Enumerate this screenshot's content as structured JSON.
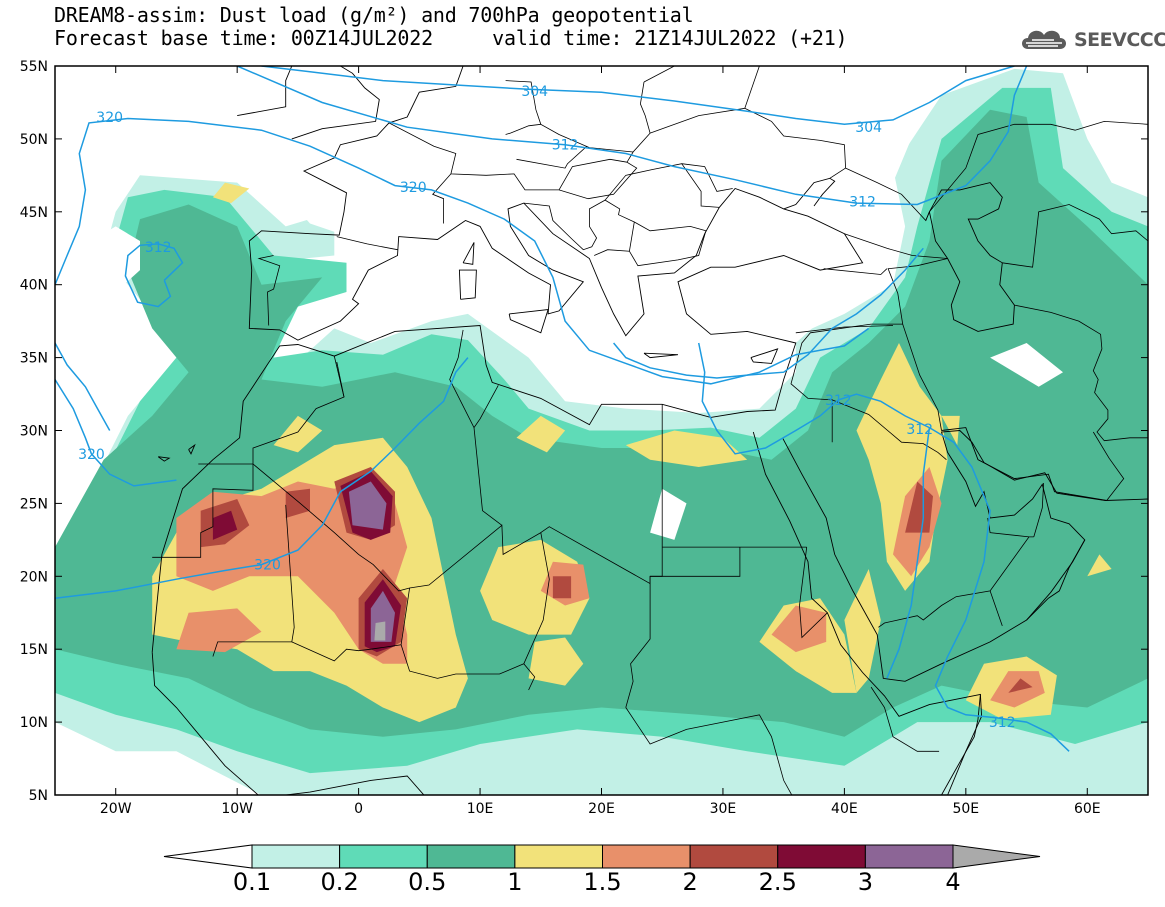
{
  "title": {
    "line1": "DREAM8-assim: Dust load (g/m²) and 700hPa geopotential",
    "line2_left": "Forecast base time: 00Z14JUL2022",
    "line2_right": "valid time: 21Z14JUL2022 (+21)"
  },
  "brand": {
    "name": "SEEVCCC",
    "icon": "cloud-logo-icon"
  },
  "axes": {
    "lon_range": [
      -25,
      65
    ],
    "lat_range": [
      5,
      55
    ],
    "lat_ticks": [
      {
        "value": 55,
        "label": "55N"
      },
      {
        "value": 50,
        "label": "50N"
      },
      {
        "value": 45,
        "label": "45N"
      },
      {
        "value": 40,
        "label": "40N"
      },
      {
        "value": 35,
        "label": "35N"
      },
      {
        "value": 30,
        "label": "30N"
      },
      {
        "value": 25,
        "label": "25N"
      },
      {
        "value": 20,
        "label": "20N"
      },
      {
        "value": 15,
        "label": "15N"
      },
      {
        "value": 10,
        "label": "10N"
      },
      {
        "value": 5,
        "label": "5N"
      }
    ],
    "lon_ticks": [
      {
        "value": -20,
        "label": "20W"
      },
      {
        "value": -10,
        "label": "10W"
      },
      {
        "value": 0,
        "label": "0"
      },
      {
        "value": 10,
        "label": "10E"
      },
      {
        "value": 20,
        "label": "20E"
      },
      {
        "value": 30,
        "label": "30E"
      },
      {
        "value": 40,
        "label": "40E"
      },
      {
        "value": 50,
        "label": "50E"
      },
      {
        "value": 60,
        "label": "60E"
      }
    ]
  },
  "colors": {
    "levels": [
      "#c2f0e6",
      "#5fdbb7",
      "#4fb894",
      "#f2e27a",
      "#e8906a",
      "#b14a3f",
      "#7f0b35",
      "#8c6596",
      "#aaaaaa"
    ],
    "contour": "#1e9be0",
    "land_fill": "#ffffff"
  },
  "colorbar": {
    "labels": [
      "0.1",
      "0.2",
      "0.5",
      "1",
      "1.5",
      "2",
      "2.5",
      "3",
      "4"
    ]
  },
  "contour_labels": [
    {
      "text": "304",
      "lon": 14.5,
      "lat": 53.3
    },
    {
      "text": "304",
      "lon": 42.0,
      "lat": 50.8
    },
    {
      "text": "312",
      "lon": 17.0,
      "lat": 49.6
    },
    {
      "text": "312",
      "lon": 41.5,
      "lat": 45.7
    },
    {
      "text": "320",
      "lon": -20.5,
      "lat": 51.5
    },
    {
      "text": "320",
      "lon": 4.5,
      "lat": 46.7
    },
    {
      "text": "312",
      "lon": -16.5,
      "lat": 42.6
    },
    {
      "text": "312",
      "lon": 39.5,
      "lat": 32.1
    },
    {
      "text": "312",
      "lon": 46.2,
      "lat": 30.1
    },
    {
      "text": "320",
      "lon": -22.0,
      "lat": 28.4
    },
    {
      "text": "320",
      "lon": -7.5,
      "lat": 20.8
    },
    {
      "text": "312",
      "lon": 53.0,
      "lat": 10.0
    }
  ],
  "legend_title": ""
}
